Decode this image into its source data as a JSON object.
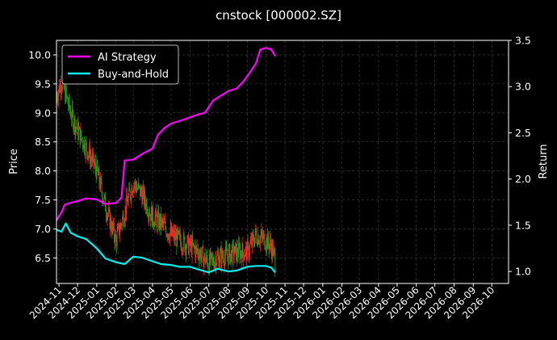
{
  "chart_data": {
    "type": "line",
    "title": "cnstock [000002.SZ]",
    "ylabel_left": "Price",
    "ylabel_right": "Return",
    "ylim_left": [
      6.06,
      10.25
    ],
    "ylim_right": [
      0.87,
      3.5
    ],
    "xlim": [
      "2024-10-28",
      "2026-10-28"
    ],
    "yticks_left": [
      "6.5",
      "7.0",
      "7.5",
      "8.0",
      "8.5",
      "9.0",
      "9.5",
      "10.0"
    ],
    "yticks_right": [
      "1.0",
      "1.5",
      "2.0",
      "2.5",
      "3.0",
      "3.5"
    ],
    "xticks": [
      "2024-11",
      "2024-12",
      "2025-01",
      "2025-02",
      "2025-03",
      "2025-04",
      "2025-05",
      "2025-06",
      "2025-07",
      "2025-08",
      "2025-09",
      "2025-10",
      "2025-11",
      "2025-12",
      "2026-01",
      "2026-02",
      "2026-03",
      "2026-04",
      "2026-05",
      "2026-06",
      "2026-07",
      "2026-08",
      "2026-09",
      "2026-10"
    ],
    "grid": true,
    "legend_position": "top-left",
    "colors": {
      "up": "#ff2a2a",
      "down": "#1aa01a",
      "ai": "#ff00ff",
      "bh": "#00f0f0",
      "grid": "#444444",
      "background": "#000000"
    },
    "series": [
      {
        "name": "AI Strategy",
        "axis": "right",
        "points": [
          [
            "2024-10-28",
            1.55
          ],
          [
            "2024-11-01",
            1.6
          ],
          [
            "2024-11-06",
            1.65
          ],
          [
            "2024-11-10",
            1.72
          ],
          [
            "2024-11-18",
            1.74
          ],
          [
            "2024-12-01",
            1.76
          ],
          [
            "2024-12-15",
            1.79
          ],
          [
            "2025-01-01",
            1.78
          ],
          [
            "2025-01-15",
            1.73
          ],
          [
            "2025-02-01",
            1.74
          ],
          [
            "2025-02-10",
            1.8
          ],
          [
            "2025-02-15",
            2.2
          ],
          [
            "2025-03-01",
            2.21
          ],
          [
            "2025-03-15",
            2.27
          ],
          [
            "2025-04-01",
            2.33
          ],
          [
            "2025-04-10",
            2.48
          ],
          [
            "2025-04-20",
            2.55
          ],
          [
            "2025-05-01",
            2.6
          ],
          [
            "2025-05-20",
            2.64
          ],
          [
            "2025-06-10",
            2.69
          ],
          [
            "2025-06-25",
            2.72
          ],
          [
            "2025-07-08",
            2.85
          ],
          [
            "2025-07-20",
            2.9
          ],
          [
            "2025-08-01",
            2.95
          ],
          [
            "2025-08-15",
            2.98
          ],
          [
            "2025-08-25",
            3.05
          ],
          [
            "2025-09-05",
            3.15
          ],
          [
            "2025-09-15",
            3.25
          ],
          [
            "2025-09-22",
            3.4
          ],
          [
            "2025-10-01",
            3.42
          ],
          [
            "2025-10-10",
            3.4
          ],
          [
            "2025-10-16",
            3.33
          ]
        ]
      },
      {
        "name": "Buy-and-Hold",
        "axis": "right",
        "points": [
          [
            "2024-10-28",
            1.45
          ],
          [
            "2024-11-05",
            1.43
          ],
          [
            "2024-11-12",
            1.52
          ],
          [
            "2024-11-20",
            1.42
          ],
          [
            "2024-12-01",
            1.38
          ],
          [
            "2024-12-15",
            1.35
          ],
          [
            "2025-01-01",
            1.25
          ],
          [
            "2025-01-15",
            1.14
          ],
          [
            "2025-02-01",
            1.1
          ],
          [
            "2025-02-15",
            1.08
          ],
          [
            "2025-03-01",
            1.16
          ],
          [
            "2025-03-15",
            1.15
          ],
          [
            "2025-04-01",
            1.11
          ],
          [
            "2025-04-15",
            1.08
          ],
          [
            "2025-05-01",
            1.07
          ],
          [
            "2025-05-15",
            1.05
          ],
          [
            "2025-06-01",
            1.05
          ],
          [
            "2025-06-15",
            1.02
          ],
          [
            "2025-07-01",
            0.99
          ],
          [
            "2025-07-15",
            1.03
          ],
          [
            "2025-08-01",
            1.0
          ],
          [
            "2025-08-15",
            1.01
          ],
          [
            "2025-09-01",
            1.05
          ],
          [
            "2025-09-15",
            1.06
          ],
          [
            "2025-10-01",
            1.06
          ],
          [
            "2025-10-10",
            1.04
          ],
          [
            "2025-10-16",
            0.99
          ]
        ]
      },
      {
        "name": "",
        "kind": "price-candles",
        "axis": "left",
        "points": [
          [
            "2024-10-28",
            9.3
          ],
          [
            "2024-11-05",
            9.55
          ],
          [
            "2024-11-12",
            9.3
          ],
          [
            "2024-11-20",
            9.0
          ],
          [
            "2024-12-01",
            8.7
          ],
          [
            "2024-12-15",
            8.4
          ],
          [
            "2025-01-01",
            8.0
          ],
          [
            "2025-01-15",
            7.4
          ],
          [
            "2025-02-01",
            6.8
          ],
          [
            "2025-02-15",
            7.3
          ],
          [
            "2025-03-01",
            7.8
          ],
          [
            "2025-03-15",
            7.6
          ],
          [
            "2025-04-01",
            7.2
          ],
          [
            "2025-04-15",
            7.1
          ],
          [
            "2025-05-01",
            6.9
          ],
          [
            "2025-05-15",
            6.8
          ],
          [
            "2025-06-01",
            6.7
          ],
          [
            "2025-06-15",
            6.6
          ],
          [
            "2025-07-01",
            6.4
          ],
          [
            "2025-07-15",
            6.5
          ],
          [
            "2025-08-01",
            6.55
          ],
          [
            "2025-08-15",
            6.6
          ],
          [
            "2025-09-01",
            6.6
          ],
          [
            "2025-09-15",
            6.9
          ],
          [
            "2025-10-01",
            6.8
          ],
          [
            "2025-10-10",
            6.7
          ],
          [
            "2025-10-16",
            6.45
          ]
        ]
      }
    ]
  }
}
